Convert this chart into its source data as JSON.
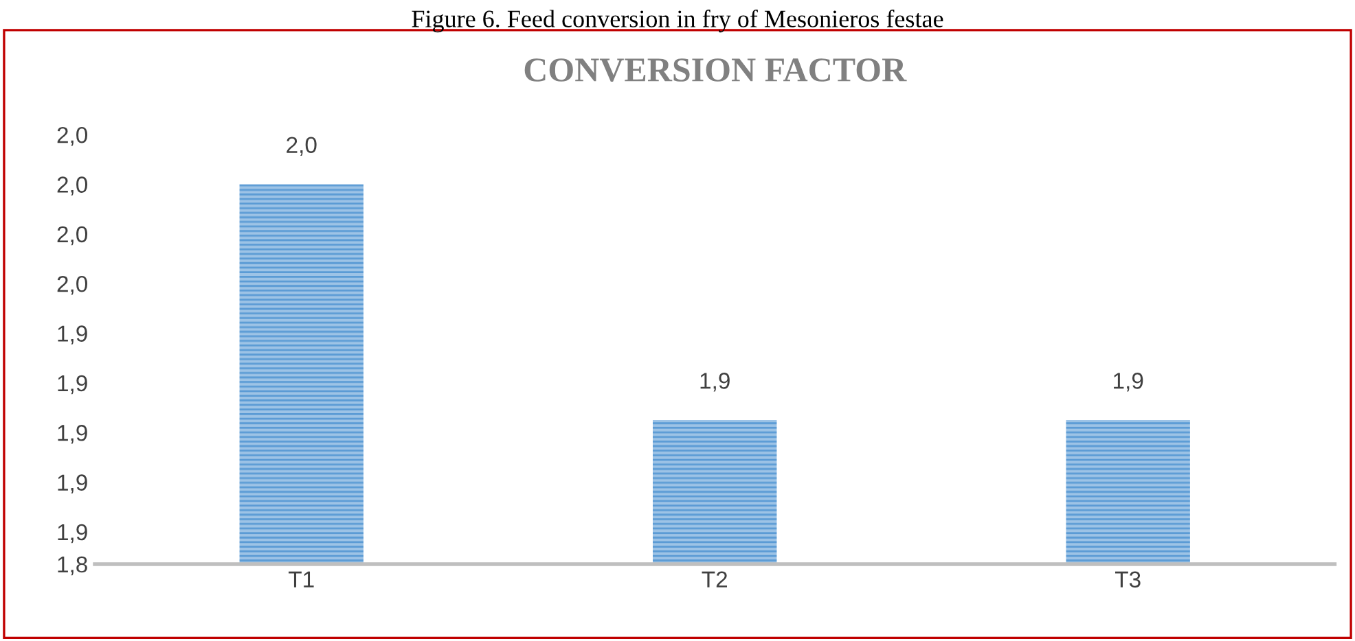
{
  "chart_data": {
    "type": "bar",
    "title": "CONVERSION FACTOR",
    "annotations": [
      "Figure 6. Feed conversion in fry of Mesonieros festae"
    ],
    "categories": [
      "T1",
      "T2",
      "T3"
    ],
    "values": [
      2.0,
      1.905,
      1.905
    ],
    "value_labels": [
      "2,0",
      "1,9",
      "1,9"
    ],
    "color": "#9dc3e6",
    "ylim": [
      1.847,
      2.02
    ],
    "yticks": [
      {
        "value": 1.847,
        "label": "1,8"
      },
      {
        "value": 1.86,
        "label": "1,9"
      },
      {
        "value": 1.88,
        "label": "1,9"
      },
      {
        "value": 1.9,
        "label": "1,9"
      },
      {
        "value": 1.92,
        "label": "1,9"
      },
      {
        "value": 1.94,
        "label": "1,9"
      },
      {
        "value": 1.96,
        "label": "2,0"
      },
      {
        "value": 1.98,
        "label": "2,0"
      },
      {
        "value": 2.0,
        "label": "2,0"
      },
      {
        "value": 2.02,
        "label": "2,0"
      }
    ],
    "grid": false
  }
}
